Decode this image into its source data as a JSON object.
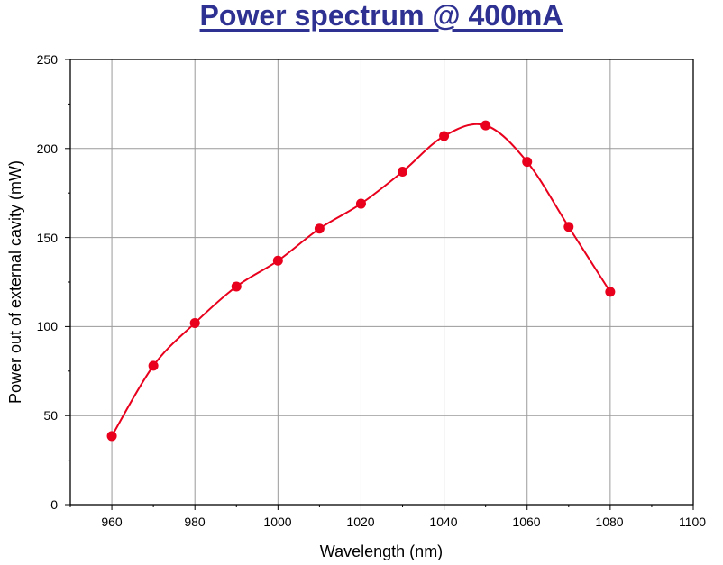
{
  "chart_data": {
    "type": "line",
    "title": "Power spectrum @ 400mA",
    "xlabel": "Wavelength (nm)",
    "ylabel": "Power out of external cavity (mW)",
    "xlim": [
      950,
      1100
    ],
    "ylim": [
      0,
      250
    ],
    "x_ticks": [
      "960",
      "980",
      "1000",
      "1020",
      "1040",
      "1060",
      "1080",
      "1100"
    ],
    "y_ticks": [
      "0",
      "50",
      "100",
      "150",
      "200",
      "250"
    ],
    "grid": true,
    "series": [
      {
        "x": [
          960,
          970,
          980,
          990,
          1000,
          1010,
          1020,
          1030,
          1040,
          1050,
          1060,
          1070,
          1080
        ],
        "y": [
          38.5,
          78,
          102,
          122.5,
          137,
          155,
          169,
          187,
          207,
          213,
          192.5,
          156,
          119.5
        ],
        "color": "#e8001c",
        "marker": "circle",
        "smooth": true
      }
    ]
  }
}
